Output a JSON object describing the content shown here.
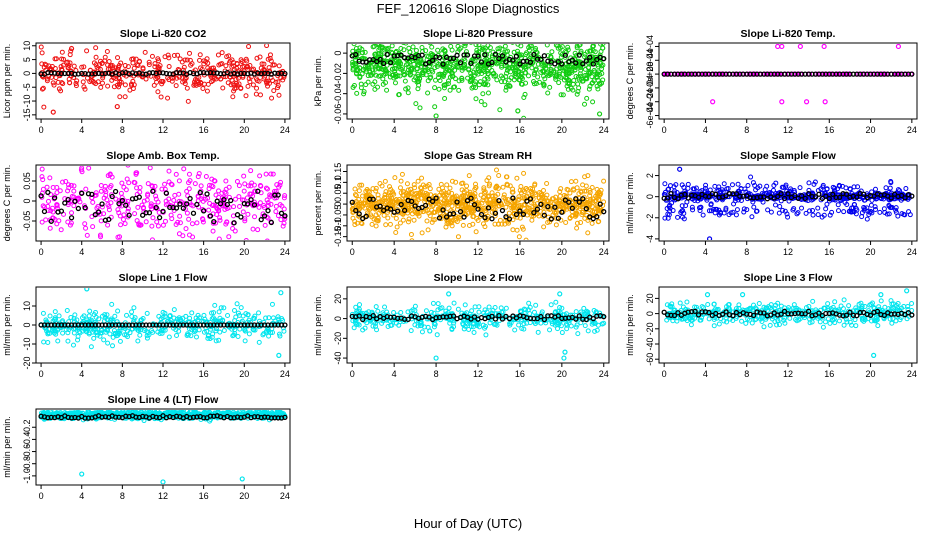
{
  "page": {
    "title": "FEF_120616  Slope Diagnostics",
    "xlabel": "Hour of Day (UTC)"
  },
  "colors": {
    "ref_points": "#000000",
    "red": "#ee1111",
    "green": "#11cc11",
    "magenta": "#ff00ff",
    "orange": "#f5a500",
    "blue": "#0000ee",
    "cyan": "#00e5ee"
  },
  "chart_data": [
    {
      "type": "scatter",
      "title": "Slope Li-820 CO2",
      "ylabel": "Licor ppm per min.",
      "xlim": [
        -0.5,
        24.5
      ],
      "ylim": [
        -16.5,
        11
      ],
      "yticks": [
        -15,
        -10,
        -5,
        0,
        5,
        10
      ],
      "xticks": [
        0,
        4,
        8,
        12,
        16,
        20,
        24
      ],
      "color": "red",
      "spread": 3.5,
      "center": 0,
      "ref": [
        0,
        0.3
      ],
      "outliers": [
        [
          1.2,
          -14
        ],
        [
          7.5,
          -12
        ],
        [
          3,
          9
        ]
      ],
      "fill": "sparse"
    },
    {
      "type": "scatter",
      "title": "Slope Li-820 Pressure",
      "ylabel": "kPa per min.",
      "xlim": [
        -0.5,
        24.5
      ],
      "ylim": [
        -0.065,
        0.01
      ],
      "yticks": [
        -0.06,
        -0.04,
        -0.02,
        0
      ],
      "xticks": [
        0,
        4,
        8,
        12,
        16,
        20,
        24
      ],
      "color": "green",
      "spread": 0.013,
      "center": -0.012,
      "ref": [
        -0.006,
        0.005
      ],
      "outliers": [
        [
          8,
          -0.062
        ],
        [
          15.8,
          -0.057
        ],
        [
          23.6,
          -0.06
        ],
        [
          23.9,
          0.005
        ]
      ],
      "fill": "dense"
    },
    {
      "type": "scatter",
      "title": "Slope Li-820 Temp.",
      "ylabel": "degrees C per min.",
      "xlim": [
        -0.5,
        24.5
      ],
      "ylim": [
        -0.00065,
        0.00045
      ],
      "yticks": [
        -0.0006,
        -0.0004,
        -0.0002,
        0,
        0.0002,
        0.0004
      ],
      "ytick_labels": [
        "-6e-04",
        "-4e-04",
        "-2e-04",
        "0e+00",
        "2e-04",
        "4e-04"
      ],
      "xticks": [
        0,
        4,
        8,
        12,
        16,
        20,
        24
      ],
      "color": "magenta",
      "spread": 0,
      "center": 0,
      "ref": [
        0,
        0
      ],
      "outliers": [
        [
          11,
          0.0004
        ],
        [
          11.4,
          0.0004
        ],
        [
          13.2,
          0.0004
        ],
        [
          15.5,
          0.0004
        ],
        [
          22.7,
          0.0004
        ],
        [
          4.7,
          -0.0004
        ],
        [
          11.4,
          -0.0004
        ],
        [
          13.8,
          -0.0004
        ],
        [
          15.6,
          -0.0004
        ]
      ],
      "fill": "line"
    },
    {
      "type": "scatter",
      "title": "Slope Amb. Box Temp.",
      "ylabel": "degrees C per min.",
      "xlim": [
        -0.5,
        24.5
      ],
      "ylim": [
        -0.1,
        0.09
      ],
      "yticks": [
        -0.05,
        0,
        0.05
      ],
      "xticks": [
        0,
        4,
        8,
        12,
        16,
        20,
        24
      ],
      "color": "magenta",
      "spread": 0.04,
      "center": 0,
      "ref": [
        -0.015,
        0.04
      ],
      "outliers": [],
      "fill": "sparse"
    },
    {
      "type": "scatter",
      "title": "Slope Gas Stream RH",
      "ylabel": "percent per min.",
      "xlim": [
        -0.5,
        24.5
      ],
      "ylim": [
        -0.17,
        0.18
      ],
      "yticks": [
        -0.15,
        -0.1,
        -0.05,
        0,
        0.05,
        0.1,
        0.15
      ],
      "xticks": [
        0,
        4,
        8,
        12,
        16,
        20,
        24
      ],
      "color": "orange",
      "spread": 0.05,
      "center": 0,
      "ref": [
        -0.02,
        0.05
      ],
      "outliers": [],
      "fill": "dense"
    },
    {
      "type": "scatter",
      "title": "Slope Sample Flow",
      "ylabel": "ml/min per min.",
      "xlim": [
        -0.5,
        24.5
      ],
      "ylim": [
        -4.2,
        3
      ],
      "yticks": [
        -4,
        -2,
        0,
        2
      ],
      "xticks": [
        0,
        4,
        8,
        12,
        16,
        20,
        24
      ],
      "color": "blue",
      "spread": 0.5,
      "center": 0,
      "ref": [
        0.05,
        0.25
      ],
      "outliers": [
        [
          1.5,
          2.6
        ],
        [
          4.4,
          -4
        ]
      ],
      "fill": "bands"
    },
    {
      "type": "scatter",
      "title": "Slope Line 1 Flow",
      "ylabel": "ml/min per min.",
      "xlim": [
        -0.5,
        24.5
      ],
      "ylim": [
        -20,
        20
      ],
      "yticks": [
        -20,
        -10,
        0,
        10
      ],
      "xticks": [
        0,
        4,
        8,
        12,
        16,
        20,
        24
      ],
      "color": "cyan",
      "spread": 4,
      "center": 0,
      "ref": [
        0,
        0
      ],
      "outliers": [
        [
          4.5,
          19
        ],
        [
          23.6,
          17
        ],
        [
          23.4,
          -16
        ]
      ],
      "fill": "sparse"
    },
    {
      "type": "scatter",
      "title": "Slope Line 2 Flow",
      "ylabel": "ml/min per min.",
      "xlim": [
        -0.5,
        24.5
      ],
      "ylim": [
        -45,
        32
      ],
      "yticks": [
        -40,
        -20,
        0,
        20
      ],
      "xticks": [
        0,
        4,
        8,
        12,
        16,
        20,
        24
      ],
      "color": "cyan",
      "spread": 6,
      "center": 0,
      "ref": [
        1,
        2
      ],
      "outliers": [
        [
          8,
          -40
        ],
        [
          20.2,
          -40
        ],
        [
          19.8,
          25
        ],
        [
          9.2,
          25
        ],
        [
          20.3,
          -34
        ]
      ],
      "fill": "sparse"
    },
    {
      "type": "scatter",
      "title": "Slope Line 3 Flow",
      "ylabel": "ml/min per min.",
      "xlim": [
        -0.5,
        24.5
      ],
      "ylim": [
        -65,
        35
      ],
      "yticks": [
        -60,
        -40,
        -20,
        0,
        20
      ],
      "xticks": [
        0,
        4,
        8,
        12,
        16,
        20,
        24
      ],
      "color": "cyan",
      "spread": 7,
      "center": 0,
      "ref": [
        0,
        3
      ],
      "outliers": [
        [
          4.2,
          25
        ],
        [
          7.6,
          25
        ],
        [
          20.3,
          -55
        ],
        [
          21,
          25
        ],
        [
          23.5,
          30
        ]
      ],
      "fill": "sparse"
    },
    {
      "type": "scatter",
      "title": "Slope Line 4 (LT) Flow",
      "ylabel": "ml/min per min.",
      "xlim": [
        -0.5,
        24.5
      ],
      "ylim": [
        -1.15,
        0.1
      ],
      "yticks": [
        -1,
        -0.8,
        -0.6,
        -0.4,
        -0.2
      ],
      "ytick_labels": [
        "-1.0",
        "-0.8",
        "-0.6",
        "-0.4",
        "-0.2"
      ],
      "xticks": [
        0,
        4,
        8,
        12,
        16,
        20,
        24
      ],
      "color": "cyan",
      "spread": 0.03,
      "center": 0,
      "ref": [
        -0.03,
        0.02
      ],
      "outliers": [
        [
          4,
          -0.97
        ],
        [
          12,
          -1.1
        ],
        [
          19.8,
          -1.05
        ]
      ],
      "fill": "dense"
    }
  ]
}
